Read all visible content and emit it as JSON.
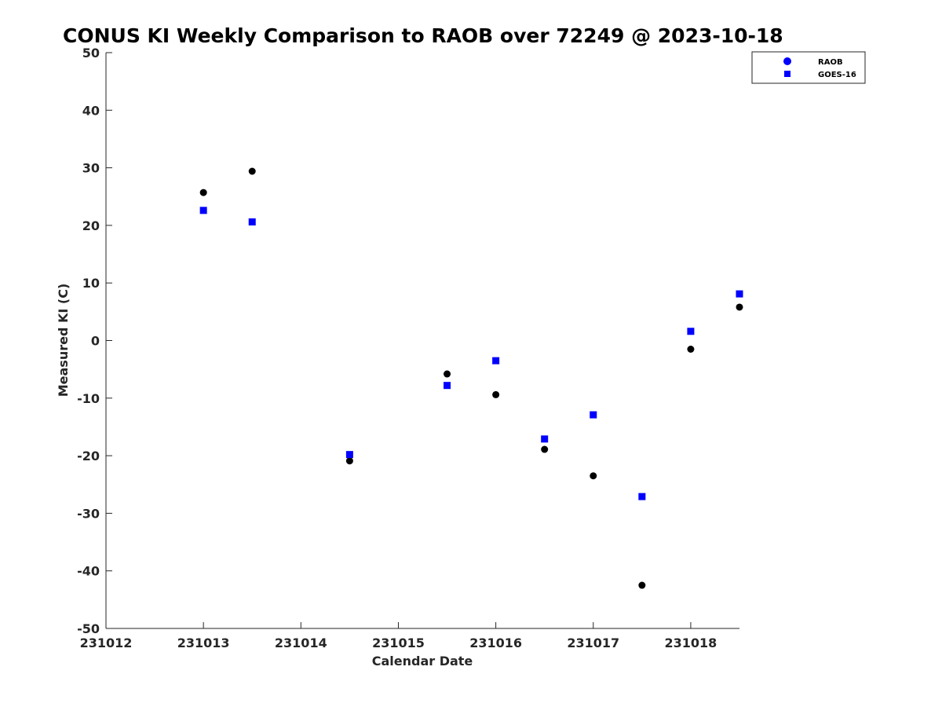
{
  "chart_data": {
    "type": "scatter",
    "title": "CONUS KI Weekly Comparison to RAOB over 72249 @ 2023-10-18",
    "xlabel": "Calendar Date",
    "ylabel": "Measured KI (C)",
    "xlim": [
      231012,
      231018.5
    ],
    "ylim": [
      -50,
      50
    ],
    "x_ticks": [
      231012,
      231013,
      231014,
      231015,
      231016,
      231017,
      231018
    ],
    "x_tick_labels": [
      "231012",
      "231013",
      "231014",
      "231015",
      "231016",
      "231017",
      "231018"
    ],
    "y_ticks": [
      50,
      40,
      30,
      20,
      10,
      0,
      -10,
      -20,
      -30,
      -40,
      -50
    ],
    "y_tick_labels": [
      "50",
      "40",
      "30",
      "20",
      "10",
      "0",
      "-10",
      "-20",
      "-30",
      "-40",
      "-50"
    ],
    "grid": false,
    "legend_position": "top-right",
    "series": [
      {
        "name": "RAOB",
        "marker": "circle",
        "color": "#000000",
        "legend_color": "#0000ff",
        "x": [
          231013,
          231013.5,
          231014.5,
          231015.5,
          231016,
          231016.5,
          231017,
          231017.5,
          231018,
          231018.5
        ],
        "y": [
          25.7,
          29.4,
          -20.9,
          -5.8,
          -9.4,
          -18.9,
          -23.5,
          -42.5,
          -1.5,
          5.8
        ]
      },
      {
        "name": "GOES-16",
        "marker": "square",
        "color": "#0000ff",
        "legend_color": "#0000ff",
        "x": [
          231013,
          231013.5,
          231014.5,
          231015.5,
          231016,
          231016.5,
          231017,
          231017.5,
          231018,
          231018.5
        ],
        "y": [
          22.6,
          20.6,
          -19.8,
          -7.8,
          -3.5,
          -17.1,
          -12.9,
          -27.1,
          1.6,
          8.1
        ]
      }
    ]
  }
}
